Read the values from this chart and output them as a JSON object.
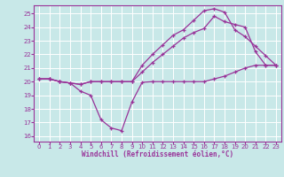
{
  "xlabel": "Windchill (Refroidissement éolien,°C)",
  "bg_color": "#c8e8e8",
  "grid_color": "#ffffff",
  "line_color": "#993399",
  "spine_color": "#993399",
  "xlim": [
    -0.5,
    23.5
  ],
  "ylim": [
    15.6,
    25.6
  ],
  "yticks": [
    16,
    17,
    18,
    19,
    20,
    21,
    22,
    23,
    24,
    25
  ],
  "xticks": [
    0,
    1,
    2,
    3,
    4,
    5,
    6,
    7,
    8,
    9,
    10,
    11,
    12,
    13,
    14,
    15,
    16,
    17,
    18,
    19,
    20,
    21,
    22,
    23
  ],
  "curve1_x": [
    0,
    1,
    2,
    3,
    4,
    5,
    6,
    7,
    8,
    9,
    10,
    11,
    12,
    13,
    14,
    15,
    16,
    17,
    18,
    19,
    20,
    21,
    22,
    23
  ],
  "curve1_y": [
    20.2,
    20.2,
    20.0,
    19.9,
    19.3,
    19.0,
    17.2,
    16.6,
    16.4,
    18.5,
    19.95,
    20.0,
    20.0,
    20.0,
    20.0,
    20.0,
    20.0,
    20.2,
    20.4,
    20.7,
    21.0,
    21.2,
    21.2,
    21.2
  ],
  "curve2_x": [
    0,
    1,
    2,
    3,
    4,
    5,
    6,
    7,
    8,
    9,
    10,
    11,
    12,
    13,
    14,
    15,
    16,
    17,
    18,
    19,
    20,
    21,
    22,
    23
  ],
  "curve2_y": [
    20.2,
    20.2,
    20.0,
    19.9,
    19.8,
    20.0,
    20.0,
    20.0,
    20.0,
    20.0,
    20.7,
    21.4,
    22.0,
    22.6,
    23.2,
    23.6,
    23.9,
    24.8,
    24.4,
    24.2,
    24.0,
    22.2,
    21.2,
    21.2
  ],
  "curve3_x": [
    0,
    1,
    2,
    3,
    4,
    5,
    6,
    7,
    8,
    9,
    10,
    11,
    12,
    13,
    14,
    15,
    16,
    17,
    18,
    19,
    20,
    21,
    22,
    23
  ],
  "curve3_y": [
    20.2,
    20.2,
    20.0,
    19.9,
    19.8,
    20.0,
    20.0,
    20.0,
    20.0,
    20.0,
    21.2,
    22.0,
    22.7,
    23.4,
    23.8,
    24.5,
    25.2,
    25.35,
    25.1,
    23.8,
    23.3,
    22.6,
    21.9,
    21.2
  ]
}
